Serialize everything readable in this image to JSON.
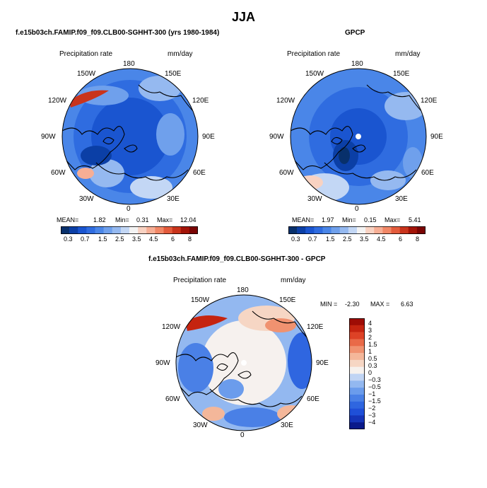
{
  "page": {
    "season_title": "JJA"
  },
  "chart_data": [
    {
      "type": "heatmap",
      "projection": "polar-stereographic-north",
      "title": "f.e15b03ch.FAMIP.f09_f09.CLB00-SGHHT-300 (yrs 1980-1984)",
      "variable_label": "Precipitation rate",
      "units": "mm/day",
      "lon_labels": [
        "180",
        "150E",
        "120E",
        "90E",
        "60E",
        "30E",
        "0",
        "30W",
        "60W",
        "90W",
        "120W",
        "150W"
      ],
      "stats": {
        "mean_label": "MEAN=",
        "mean": "1.82",
        "min_label": "Min=",
        "min": "0.31",
        "max_label": "Max=",
        "max": "12.04"
      },
      "colorbar": {
        "orientation": "horizontal",
        "levels": [
          0.3,
          0.5,
          0.7,
          1.0,
          1.5,
          2.0,
          2.5,
          3.0,
          3.5,
          4.0,
          4.5,
          5.0,
          6.0,
          7.0,
          8.0
        ],
        "labels": [
          "0.3",
          "0.7",
          "1.5",
          "2.5",
          "3.5",
          "4.5",
          "6",
          "8"
        ],
        "colors": [
          "#08306b",
          "#0b3fa6",
          "#1a55d0",
          "#2f6ce0",
          "#4a86e8",
          "#6fa0ec",
          "#95b9f0",
          "#c3d7f5",
          "#f3f3f3",
          "#f8d2c2",
          "#f6ae95",
          "#f18766",
          "#e35b3c",
          "#c9341c",
          "#a31408",
          "#7a0403"
        ]
      }
    },
    {
      "type": "heatmap",
      "projection": "polar-stereographic-north",
      "title": "GPCP",
      "variable_label": "Precipitation rate",
      "units": "mm/day",
      "lon_labels": [
        "180",
        "150E",
        "120E",
        "90E",
        "60E",
        "30E",
        "0",
        "30W",
        "60W",
        "90W",
        "120W",
        "150W"
      ],
      "stats": {
        "mean_label": "MEAN=",
        "mean": "1.97",
        "min_label": "Min=",
        "min": "0.15",
        "max_label": "Max=",
        "max": "5.41"
      },
      "colorbar": {
        "orientation": "horizontal",
        "levels": [
          0.3,
          0.5,
          0.7,
          1.0,
          1.5,
          2.0,
          2.5,
          3.0,
          3.5,
          4.0,
          4.5,
          5.0,
          6.0,
          7.0,
          8.0
        ],
        "labels": [
          "0.3",
          "0.7",
          "1.5",
          "2.5",
          "3.5",
          "4.5",
          "6",
          "8"
        ],
        "colors": [
          "#08306b",
          "#0b3fa6",
          "#1a55d0",
          "#2f6ce0",
          "#4a86e8",
          "#6fa0ec",
          "#95b9f0",
          "#c3d7f5",
          "#f3f3f3",
          "#f8d2c2",
          "#f6ae95",
          "#f18766",
          "#e35b3c",
          "#c9341c",
          "#a31408",
          "#7a0403"
        ]
      }
    },
    {
      "type": "heatmap",
      "projection": "polar-stereographic-north",
      "title": "f.e15b03ch.FAMIP.f09_f09.CLB00-SGHHT-300 - GPCP",
      "variable_label": "Precipitation rate",
      "units": "mm/day",
      "lon_labels": [
        "180",
        "150E",
        "120E",
        "90E",
        "60E",
        "30E",
        "0",
        "30W",
        "60W",
        "90W",
        "120W",
        "150W"
      ],
      "stats": {
        "min_label": "MIN =",
        "min": "-2.30",
        "max_label": "MAX =",
        "max": "6.63"
      },
      "colorbar": {
        "orientation": "vertical",
        "levels": [
          -4,
          -3,
          -2,
          -1.5,
          -1,
          -0.5,
          -0.3,
          0,
          0.3,
          0.5,
          1,
          1.5,
          2,
          3,
          4
        ],
        "labels": [
          "4",
          "3",
          "2",
          "1.5",
          "1",
          "0.5",
          "0.3",
          "0",
          "−0.3",
          "−0.5",
          "−1",
          "−1.5",
          "−2",
          "−3",
          "−4"
        ],
        "colors": [
          "#0a1a8a",
          "#1534b8",
          "#1f4fd8",
          "#2f66e0",
          "#4a80e6",
          "#6b9cec",
          "#93b8f0",
          "#c0d4f4",
          "#f6f1ee",
          "#f6d6c4",
          "#f4b79a",
          "#f09270",
          "#e96a48",
          "#dd4226",
          "#c52410",
          "#9e0c05"
        ]
      }
    }
  ]
}
